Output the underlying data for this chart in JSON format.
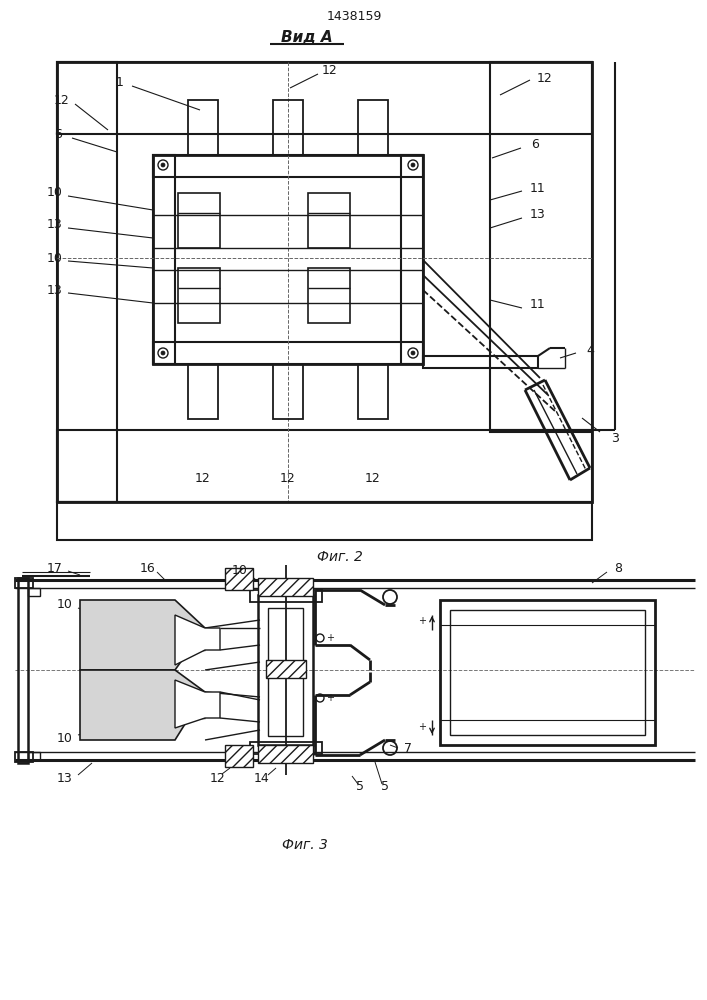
{
  "title": "1438159",
  "view_label": "Вид А",
  "fig2_label": "Фиг. 2",
  "fig3_label": "Фиг. 3",
  "bg_color": "#ffffff",
  "line_color": "#1a1a1a"
}
